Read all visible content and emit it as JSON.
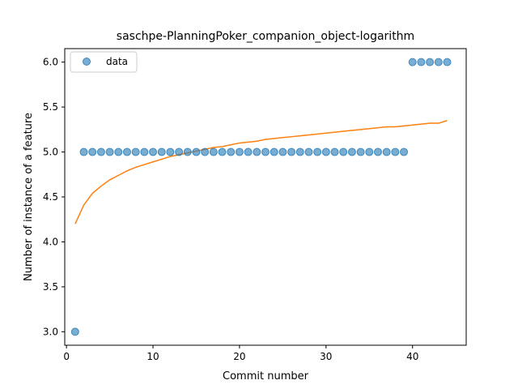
{
  "chart_data": {
    "type": "scatter",
    "title": "saschpe-PlanningPoker_companion_object-logarithm",
    "xlabel": "Commit number",
    "ylabel": "Number of instance of a feature",
    "xlim": [
      -0.2,
      46.2
    ],
    "ylim": [
      2.85,
      6.15
    ],
    "x_ticks": [
      0,
      10,
      20,
      30,
      40
    ],
    "y_ticks": [
      3.0,
      3.5,
      4.0,
      4.5,
      5.0,
      5.5,
      6.0
    ],
    "x_tick_labels": [
      "0",
      "10",
      "20",
      "30",
      "40"
    ],
    "y_tick_labels": [
      "3.0",
      "3.5",
      "4.0",
      "4.5",
      "5.0",
      "5.5",
      "6.0"
    ],
    "legend": {
      "placement": "top-left",
      "entries": [
        "data"
      ]
    },
    "grid": false,
    "series": [
      {
        "name": "data",
        "kind": "scatter",
        "color": "#1f77b4",
        "x": [
          1,
          2,
          3,
          4,
          5,
          6,
          7,
          8,
          9,
          10,
          11,
          12,
          13,
          14,
          15,
          16,
          17,
          18,
          19,
          20,
          21,
          22,
          23,
          24,
          25,
          26,
          27,
          28,
          29,
          30,
          31,
          32,
          33,
          34,
          35,
          36,
          37,
          38,
          39,
          40,
          41,
          42,
          43,
          44
        ],
        "y": [
          3,
          5,
          5,
          5,
          5,
          5,
          5,
          5,
          5,
          5,
          5,
          5,
          5,
          5,
          5,
          5,
          5,
          5,
          5,
          5,
          5,
          5,
          5,
          5,
          5,
          5,
          5,
          5,
          5,
          5,
          5,
          5,
          5,
          5,
          5,
          5,
          5,
          5,
          5,
          6,
          6,
          6,
          6,
          6
        ]
      },
      {
        "kind": "line",
        "color": "#ff7f0e",
        "x": [
          1,
          2,
          3,
          4,
          5,
          6,
          7,
          8,
          9,
          10,
          11,
          12,
          13,
          14,
          15,
          16,
          17,
          18,
          19,
          20,
          21,
          22,
          23,
          24,
          25,
          26,
          27,
          28,
          29,
          30,
          31,
          32,
          33,
          34,
          35,
          36,
          37,
          38,
          39,
          40,
          41,
          42,
          43,
          44
        ],
        "y": [
          4.2,
          4.41,
          4.54,
          4.62,
          4.69,
          4.74,
          4.79,
          4.83,
          4.86,
          4.89,
          4.92,
          4.95,
          4.97,
          4.99,
          5.01,
          5.03,
          5.05,
          5.06,
          5.08,
          5.1,
          5.11,
          5.12,
          5.14,
          5.15,
          5.16,
          5.17,
          5.18,
          5.19,
          5.2,
          5.21,
          5.22,
          5.23,
          5.24,
          5.25,
          5.26,
          5.27,
          5.28,
          5.28,
          5.29,
          5.3,
          5.31,
          5.32,
          5.32,
          5.35
        ]
      }
    ]
  }
}
